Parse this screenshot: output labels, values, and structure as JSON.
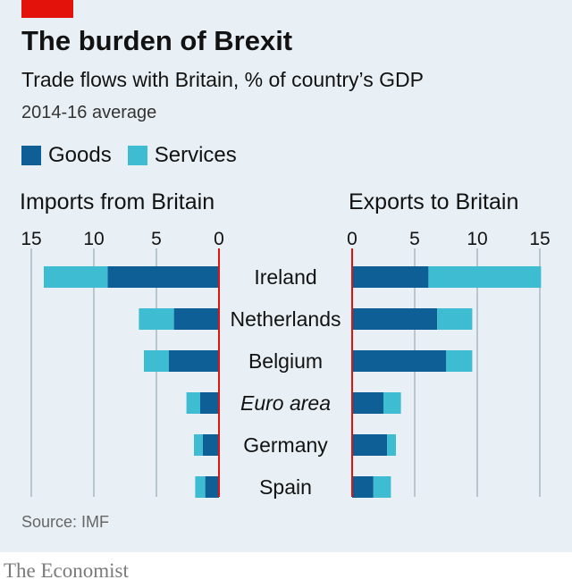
{
  "header": {
    "title": "The burden of Brexit",
    "subtitle": "Trade flows with Britain, % of country’s GDP",
    "subsubtitle": "2014-16 average"
  },
  "legend": [
    {
      "label": "Goods",
      "color": "#0e5f96"
    },
    {
      "label": "Services",
      "color": "#3ebcd2"
    }
  ],
  "source": "Source: IMF",
  "brand": "The Economist",
  "colors": {
    "goods": "#0e5f96",
    "services": "#3ebcd2",
    "zero_line": "#e3120b",
    "grid": "#b7c6cf"
  },
  "chart_data": {
    "type": "bar",
    "orientation": "horizontal",
    "categories": [
      "Ireland",
      "Netherlands",
      "Belgium",
      "Euro area",
      "Germany",
      "Spain"
    ],
    "italic_categories": [
      "Euro area"
    ],
    "panels": [
      {
        "title": "Imports from Britain",
        "direction": "left",
        "xlim": [
          0,
          15
        ],
        "ticks": [
          15,
          10,
          5,
          0
        ],
        "series": [
          {
            "name": "Goods",
            "values": [
              8.9,
              3.6,
              4.0,
              1.5,
              1.3,
              1.1
            ]
          },
          {
            "name": "Services",
            "values": [
              5.1,
              2.8,
              2.0,
              1.1,
              0.7,
              0.8
            ]
          }
        ]
      },
      {
        "title": "Exports to Britain",
        "direction": "right",
        "xlim": [
          0,
          15
        ],
        "ticks": [
          0,
          5,
          10,
          15
        ],
        "series": [
          {
            "name": "Goods",
            "values": [
              6.1,
              6.8,
              7.5,
              2.5,
              2.8,
              1.7
            ]
          },
          {
            "name": "Services",
            "values": [
              9.0,
              2.8,
              2.1,
              1.4,
              0.7,
              1.4
            ]
          }
        ]
      }
    ],
    "stacked": true,
    "grid": true
  }
}
